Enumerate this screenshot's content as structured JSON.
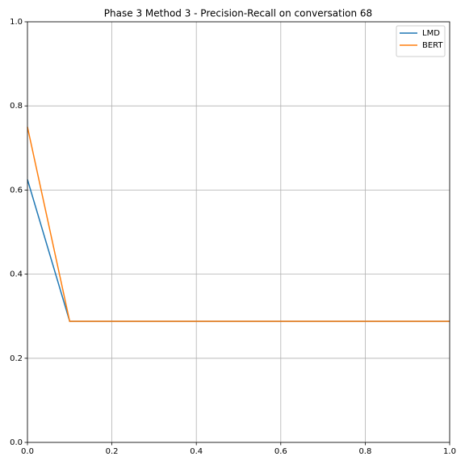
{
  "chart_data": {
    "type": "line",
    "title": "Phase 3 Method 3 - Precision-Recall on conversation 68",
    "x": [
      0,
      0.1,
      1
    ],
    "series": [
      {
        "name": "LMD",
        "color": "#1f77b4",
        "values": [
          0.625,
          0.288,
          0.288
        ]
      },
      {
        "name": "BERT",
        "color": "#ff7f0e",
        "values": [
          0.75,
          0.288,
          0.288
        ]
      }
    ],
    "xlim": [
      0,
      1
    ],
    "ylim": [
      0,
      1
    ],
    "xticks": [
      {
        "value": 0,
        "label": "0.0"
      },
      0.2,
      0.4,
      0.6,
      0.8,
      {
        "value": 1,
        "label": "1.0"
      }
    ],
    "yticks": [
      {
        "value": 0,
        "label": "0.0"
      },
      0.2,
      0.4,
      0.6,
      0.8,
      {
        "value": 1,
        "label": "1.0"
      }
    ],
    "grid": true,
    "legend": "upper right"
  }
}
